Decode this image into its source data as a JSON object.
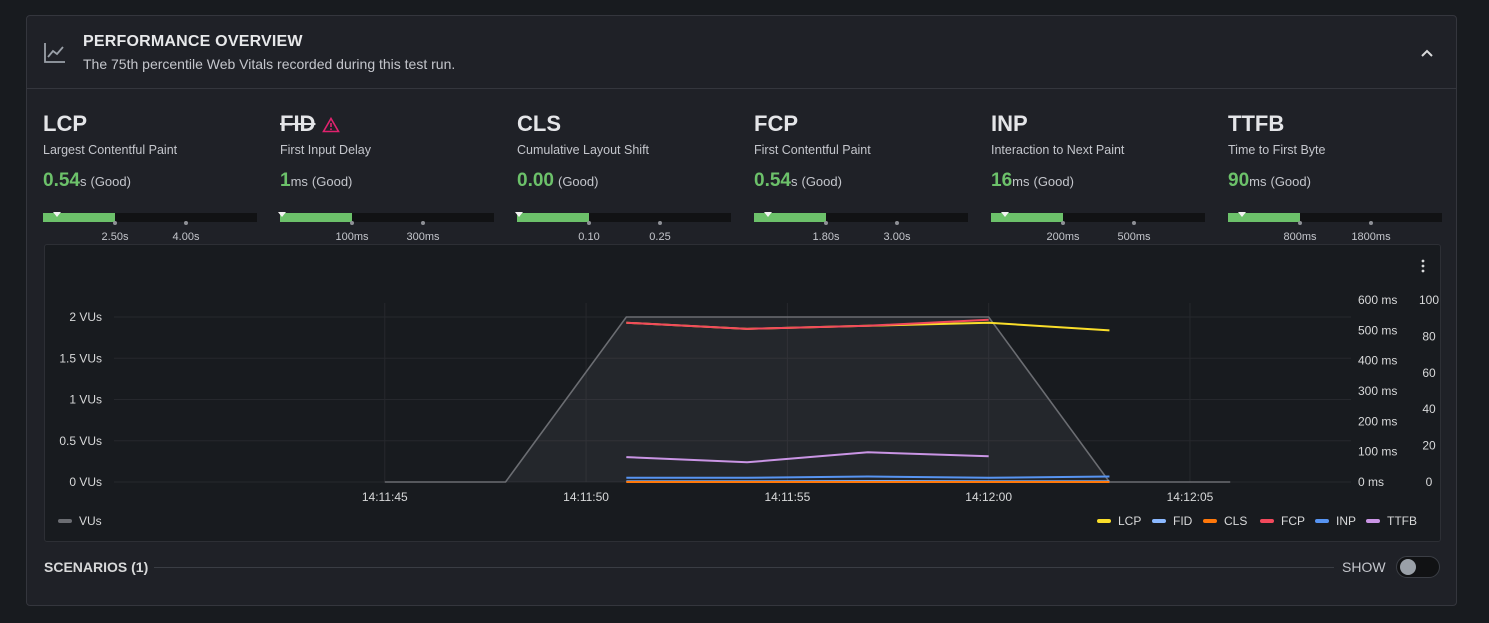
{
  "header": {
    "title": "PERFORMANCE OVERVIEW",
    "subtitle": "The 75th percentile Web Vitals recorded during this test run.",
    "icon": "line-chart-icon",
    "collapse_icon": "chevron-up-icon"
  },
  "metrics": [
    {
      "abbr": "LCP",
      "name": "Largest Contentful Paint",
      "value": "0.54",
      "unit": "s",
      "status": "(Good)",
      "progress": 0.335,
      "thresholds": [
        "2.50s",
        "4.00s"
      ]
    },
    {
      "abbr": "FID",
      "name": "First Input Delay",
      "value": "1",
      "unit": "ms",
      "status": "(Good)",
      "progress": 0.335,
      "thresholds": [
        "100ms",
        "300ms"
      ],
      "deprecated": true,
      "warning_icon": "warning-triangle-icon"
    },
    {
      "abbr": "CLS",
      "name": "Cumulative Layout Shift",
      "value": "0.00",
      "unit": "",
      "status": "(Good)",
      "progress": 0.335,
      "thresholds": [
        "0.10",
        "0.25"
      ]
    },
    {
      "abbr": "FCP",
      "name": "First Contentful Paint",
      "value": "0.54",
      "unit": "s",
      "status": "(Good)",
      "progress": 0.335,
      "thresholds": [
        "1.80s",
        "3.00s"
      ]
    },
    {
      "abbr": "INP",
      "name": "Interaction to Next Paint",
      "value": "16",
      "unit": "ms",
      "status": "(Good)",
      "progress": 0.335,
      "thresholds": [
        "200ms",
        "500ms"
      ]
    },
    {
      "abbr": "TTFB",
      "name": "Time to First Byte",
      "value": "90",
      "unit": "ms",
      "status": "(Good)",
      "progress": 0.335,
      "thresholds": [
        "800ms",
        "1800ms"
      ]
    }
  ],
  "chart_data": {
    "type": "line",
    "x_ticks": [
      "14:11:45",
      "14:11:50",
      "14:11:55",
      "14:12:00",
      "14:12:05"
    ],
    "y_left_ticks": [
      "0 VUs",
      "0.5 VUs",
      "1 VUs",
      "1.5 VUs",
      "2 VUs"
    ],
    "y_right_ms_ticks": [
      "0 ms",
      "100 ms",
      "200 ms",
      "300 ms",
      "400 ms",
      "500 ms",
      "600 ms"
    ],
    "y_right_score_ticks": [
      "0",
      "20",
      "40",
      "60",
      "80",
      "100"
    ],
    "x_range_s": [
      -3,
      24
    ],
    "grid": true,
    "vus_series": {
      "name": "VUs",
      "color": "#6b6d72",
      "x": [
        0,
        3,
        6,
        15,
        18,
        21
      ],
      "y": [
        0,
        0,
        2,
        2,
        0,
        0
      ]
    },
    "series": [
      {
        "name": "LCP",
        "color": "#fade2a",
        "x": [
          6,
          9,
          12,
          15,
          18
        ],
        "y": [
          525,
          505,
          515,
          525,
          500
        ]
      },
      {
        "name": "FID",
        "color": "#8ab8ff",
        "x": [
          6,
          9,
          12,
          15,
          18
        ],
        "y": [
          2,
          2,
          3,
          2,
          2
        ]
      },
      {
        "name": "CLS",
        "color": "#ff780a",
        "x": [
          6,
          9,
          12,
          15,
          18
        ],
        "y": [
          0,
          0,
          0,
          0,
          0
        ]
      },
      {
        "name": "FCP",
        "color": "#f2495c",
        "x": [
          6,
          9,
          12,
          15
        ],
        "y": [
          525,
          505,
          515,
          535
        ]
      },
      {
        "name": "INP",
        "color": "#5794f2",
        "x": [
          6,
          9,
          12,
          15,
          18
        ],
        "y": [
          14,
          14,
          18,
          14,
          18
        ]
      },
      {
        "name": "TTFB",
        "color": "#ca95e5",
        "x": [
          6,
          9,
          12,
          15
        ],
        "y": [
          82,
          65,
          98,
          85
        ]
      }
    ],
    "legend_placement": "bottom"
  },
  "chart_menu_icon": "kebab-menu-icon",
  "footer": {
    "scenarios_label": "SCENARIOS (1)",
    "show_label": "SHOW"
  }
}
